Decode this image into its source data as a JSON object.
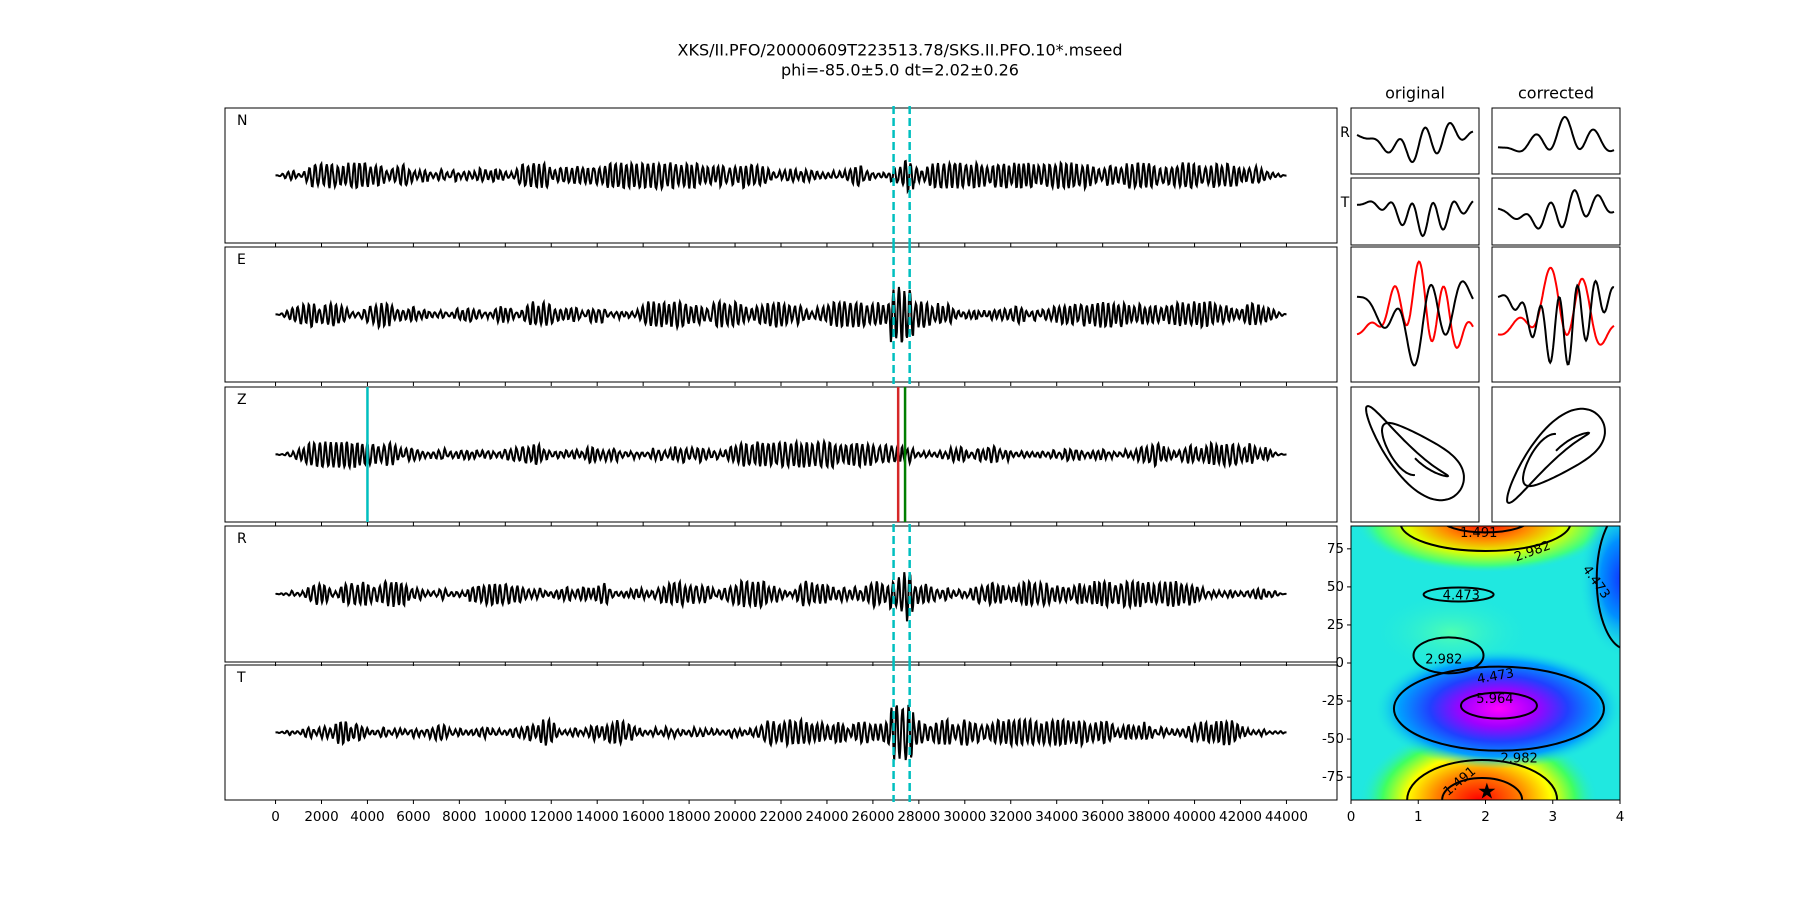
{
  "chart_data": [
    {
      "type": "waveform",
      "title": [
        "XKS/II.PFO/20000609T223513.78/SKS.II.PFO.10*.mseed",
        "phi=-85.0±5.0 dt=2.02±0.26"
      ],
      "panels": [
        "N",
        "E",
        "Z",
        "R",
        "T"
      ],
      "xlim": [
        -2200,
        46200
      ],
      "xticks": [
        0,
        2000,
        4000,
        6000,
        8000,
        10000,
        12000,
        14000,
        16000,
        18000,
        20000,
        22000,
        24000,
        26000,
        28000,
        30000,
        32000,
        34000,
        36000,
        38000,
        40000,
        42000,
        44000
      ],
      "window": {
        "values": [
          26900,
          27600
        ],
        "color": "#00bfbf"
      },
      "z_markers": {
        "values": [
          4000,
          27100,
          27400
        ],
        "colors": [
          "#00bfbf",
          "#d62728",
          "#007f00"
        ]
      }
    },
    {
      "type": "particle-motion",
      "columns": [
        "original",
        "corrected"
      ],
      "rows": [
        "R",
        "T"
      ]
    },
    {
      "type": "contour",
      "xlim": [
        0,
        4
      ],
      "ylim": [
        -90,
        90
      ],
      "xticks": [
        0,
        1,
        2,
        3,
        4
      ],
      "yticks": [
        75,
        50,
        25,
        0,
        -25,
        -50,
        -75
      ],
      "level_labels": [
        {
          "text": "1.491",
          "x": 1.9,
          "y": 85
        },
        {
          "text": "2.982",
          "x": 2.7,
          "y": 73
        },
        {
          "text": "4.473",
          "x": 3.64,
          "y": 53
        },
        {
          "text": "4.473",
          "x": 1.64,
          "y": 44
        },
        {
          "text": "2.982",
          "x": 1.38,
          "y": 2
        },
        {
          "text": "4.473",
          "x": 2.15,
          "y": -9
        },
        {
          "text": "5.964",
          "x": 2.14,
          "y": -24
        },
        {
          "text": "2.982",
          "x": 2.5,
          "y": -63
        },
        {
          "text": "1.491",
          "x": 1.62,
          "y": -78
        }
      ],
      "best": {
        "x": 2.02,
        "y": -85
      }
    }
  ]
}
